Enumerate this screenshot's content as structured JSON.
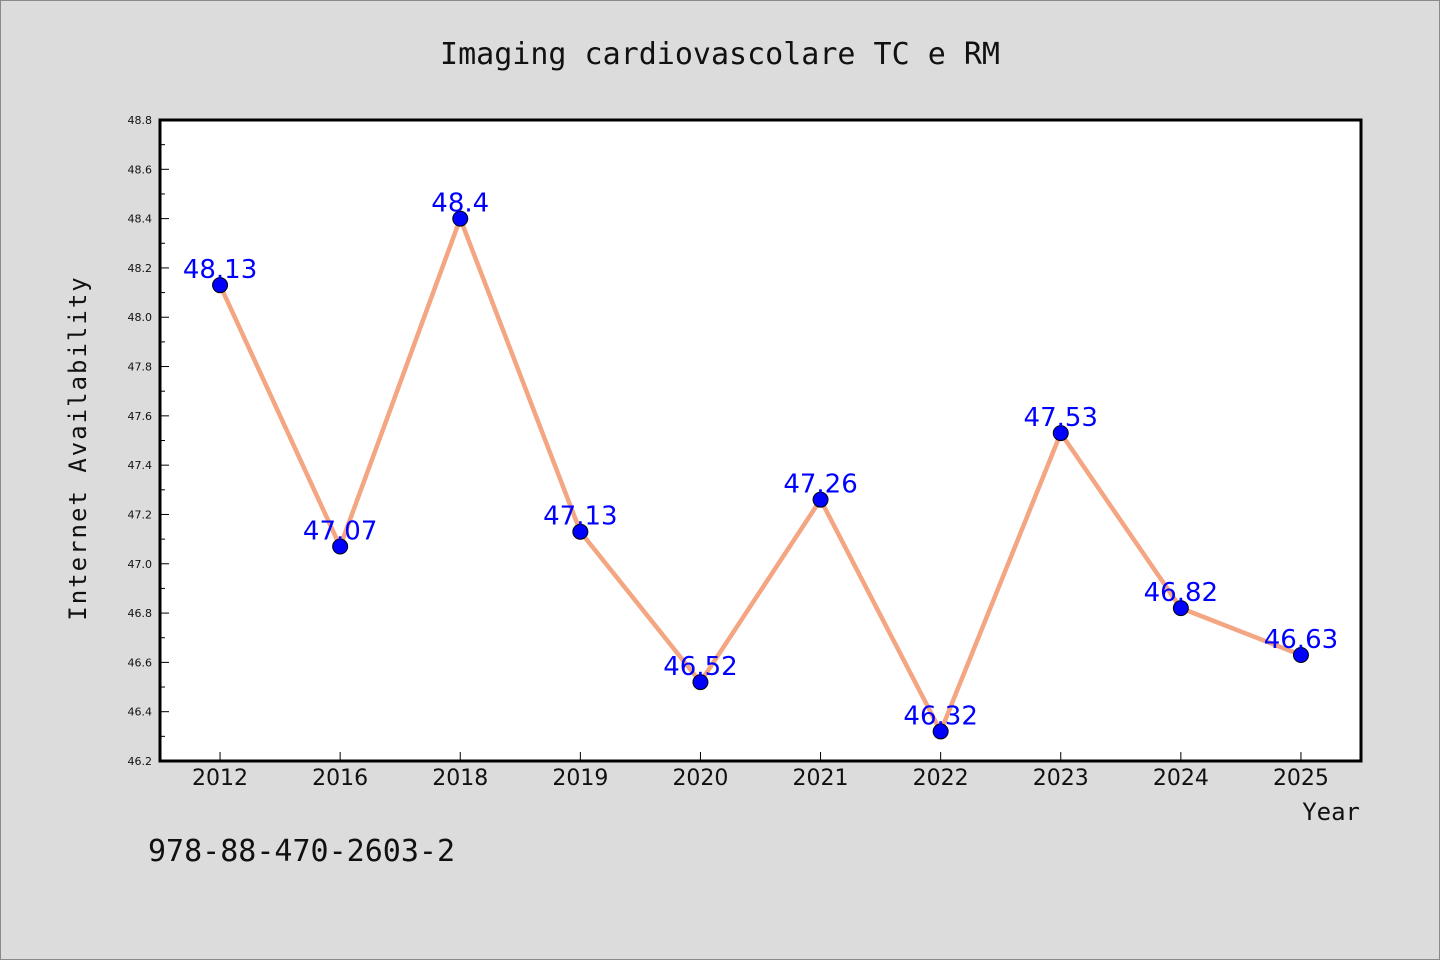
{
  "chart_data": {
    "type": "line",
    "title": "Imaging cardiovascolare TC e RM",
    "xlabel": "Year",
    "ylabel": "Internet Availability",
    "categories": [
      "2012",
      "2016",
      "2018",
      "2019",
      "2020",
      "2021",
      "2022",
      "2023",
      "2024",
      "2025"
    ],
    "series": [
      {
        "values": [
          48.13,
          47.07,
          48.4,
          47.13,
          46.52,
          47.26,
          46.32,
          47.53,
          46.82,
          46.63
        ],
        "data_labels": [
          "48.13",
          "47.07",
          "48.4",
          "47.13",
          "46.52",
          "47.26",
          "46.32",
          "47.53",
          "46.82",
          "46.63"
        ]
      }
    ],
    "ylim": [
      46.2,
      48.8
    ],
    "yticks": [
      "46.2",
      "46.4",
      "46.6",
      "46.8",
      "47.0",
      "47.2",
      "47.4",
      "47.6",
      "47.8",
      "48.0",
      "48.2",
      "48.4",
      "48.6",
      "48.8"
    ],
    "grid": false,
    "legend": "none",
    "colors": {
      "line": "#f4a582",
      "marker": "#0000ff",
      "data_label": "#0000ff",
      "plot_background": "#ffffff",
      "page_background": "#dcdcdc"
    }
  },
  "footer": {
    "isbn": "978-88-470-2603-2"
  }
}
